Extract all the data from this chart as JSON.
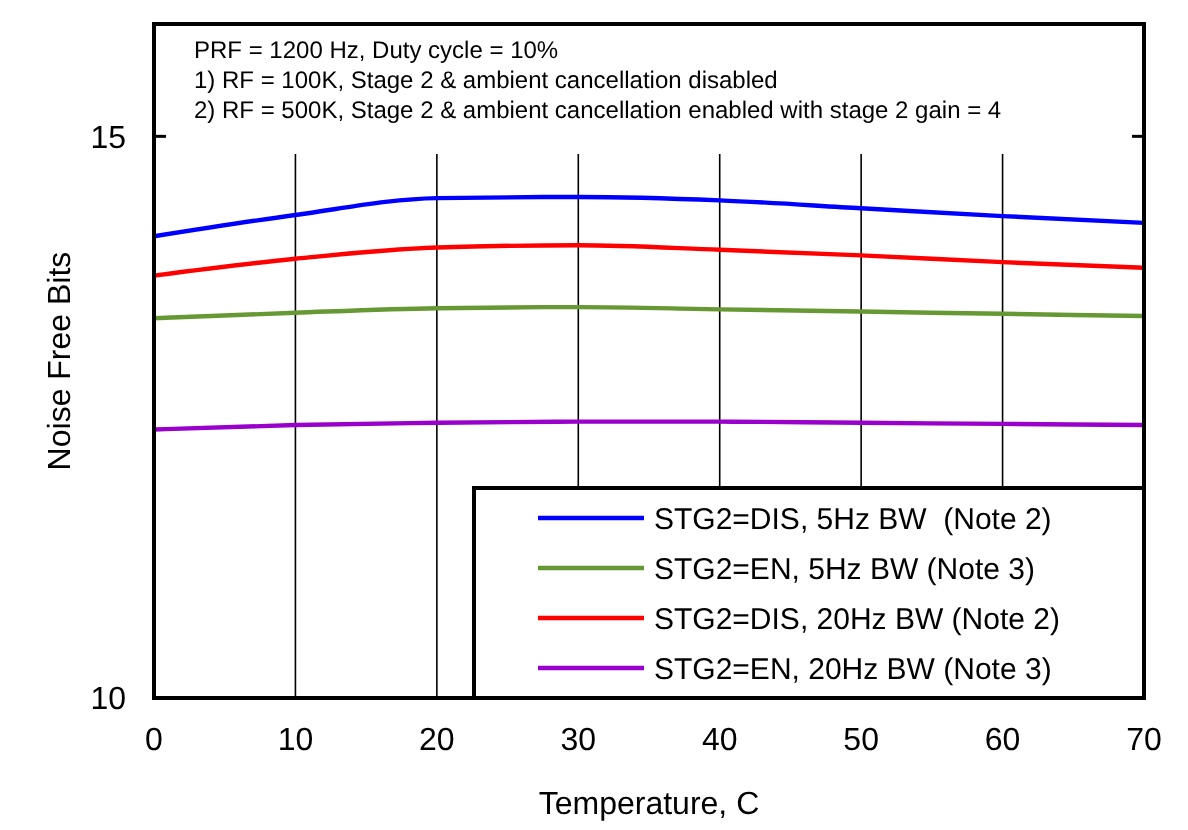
{
  "chart_data": {
    "type": "line",
    "xlabel": "Temperature, C",
    "ylabel": "Noise Free Bits",
    "x": [
      0,
      10,
      20,
      30,
      40,
      50,
      60,
      70
    ],
    "xlim": [
      0,
      70
    ],
    "xticks": [
      0,
      10,
      20,
      30,
      40,
      50,
      60,
      70
    ],
    "ylim": [
      10,
      16
    ],
    "yticks": [
      10,
      15
    ],
    "grid": "x",
    "legend": "bottom right",
    "annotations": [
      "PRF = 1200 Hz, Duty cycle = 10%",
      "1) RF = 100K, Stage 2 & ambient cancellation disabled",
      "2) RF = 500K, Stage 2 & ambient cancellation enabled with stage 2 gain = 4"
    ],
    "series": [
      {
        "name": "STG2=DIS, 5Hz BW  (Note 2)",
        "color": "#0000ff",
        "values": [
          14.11,
          14.3,
          14.45,
          14.46,
          14.43,
          14.36,
          14.29,
          14.23
        ]
      },
      {
        "name": "STG2=EN, 5Hz BW (Note 3)",
        "color": "#669933",
        "values": [
          13.38,
          13.43,
          13.47,
          13.48,
          13.46,
          13.44,
          13.42,
          13.4
        ]
      },
      {
        "name": "STG2=DIS, 20Hz BW (Note 2)",
        "color": "#ff0000",
        "values": [
          13.76,
          13.91,
          14.01,
          14.03,
          13.99,
          13.94,
          13.88,
          13.83
        ]
      },
      {
        "name": "STG2=EN, 20Hz BW (Note 3)",
        "color": "#9900cc",
        "values": [
          12.39,
          12.43,
          12.45,
          12.46,
          12.46,
          12.45,
          12.44,
          12.43
        ]
      }
    ]
  }
}
